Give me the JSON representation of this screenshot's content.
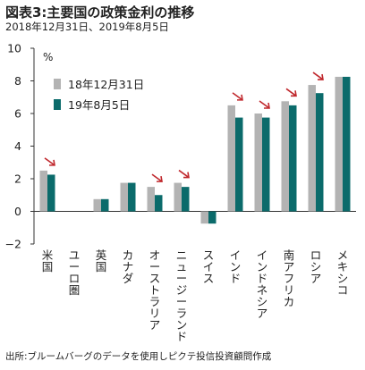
{
  "title": "図表3:主要国の政策金利の推移",
  "subtitle": "2018年12月31日、2019年8月5日",
  "source": "出所:ブルームバーグのデータを使用しピクテ投信投資顧問作成",
  "colors": {
    "series1": "#b3b3b3",
    "series2": "#0b6b6b",
    "arrow": "#c0282d",
    "axis": "#333333"
  },
  "chart_data": {
    "type": "bar",
    "unit_label": "%",
    "ylim": [
      -2,
      10
    ],
    "yticks": [
      -2,
      0,
      2,
      4,
      6,
      8,
      10
    ],
    "grid": false,
    "legend_position": "top-left",
    "categories": [
      "米国",
      "ユーロ圏",
      "英国",
      "カナダ",
      "オーストラリア",
      "ニュージーランド",
      "スイス",
      "インド",
      "インドネシア",
      "南アフリカ",
      "ロシア",
      "メキシコ"
    ],
    "series": [
      {
        "name": "18年12月31日",
        "values": [
          2.5,
          0,
          0.75,
          1.75,
          1.5,
          1.75,
          -0.75,
          6.5,
          6.0,
          6.75,
          7.75,
          8.25
        ]
      },
      {
        "name": "19年8月5日",
        "values": [
          2.25,
          0,
          0.75,
          1.75,
          1.0,
          1.5,
          -0.75,
          5.75,
          5.75,
          6.5,
          7.25,
          8.25
        ]
      }
    ],
    "cut_arrows": [
      "米国",
      "オーストラリア",
      "ニュージーランド",
      "インド",
      "インドネシア",
      "南アフリカ",
      "ロシア"
    ]
  }
}
